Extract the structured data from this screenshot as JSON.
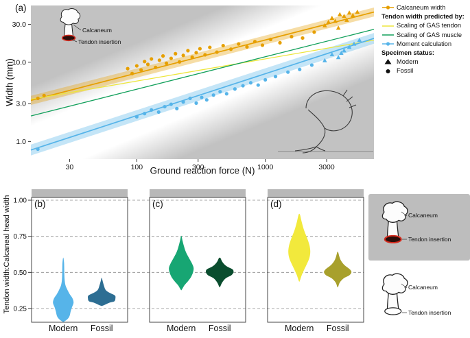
{
  "figure": {
    "panels": {
      "a": "(a)",
      "b": "(b)",
      "c": "(c)",
      "d": "(d)"
    }
  },
  "colors": {
    "plot_bg": "#C2C2C2",
    "diagonal_band": "#FFFFFF",
    "facet_strip": "#B8B8B8",
    "illustration_box": "#BDBDBD",
    "insertion_red": "#D42B1E",
    "orange": "#E69F00",
    "yellow": "#EDE63C",
    "green": "#12A05B",
    "blue": "#56B4E9",
    "marker_black": "#111111"
  },
  "anatomy": {
    "calcaneum_label": "Calcaneum",
    "tendon_insertion_label": "Tendon insertion"
  },
  "legend": {
    "items": [
      {
        "label": "Calcaneum width",
        "type": "line-dot",
        "color": "#E69F00"
      },
      {
        "label": "Tendon width predicted by:",
        "type": "header"
      },
      {
        "label": "Scaling of GAS tendon",
        "type": "line",
        "color": "#EDE63C"
      },
      {
        "label": "Scaling of GAS muscle",
        "type": "line",
        "color": "#12A05B"
      },
      {
        "label": "Moment calculation",
        "type": "line-dot",
        "color": "#56B4E9"
      },
      {
        "label": "Specimen status:",
        "type": "header"
      },
      {
        "label": "Modern",
        "type": "triangle",
        "color": "#111111"
      },
      {
        "label": "Fossil",
        "type": "circle",
        "color": "#111111"
      }
    ]
  },
  "chart_data": [
    {
      "type": "scatter",
      "xlabel": "Ground reaction force (N)",
      "ylabel": "Width (mm)",
      "xscale": "log",
      "yscale": "log",
      "xlim": [
        15,
        7000
      ],
      "ylim": [
        0.6,
        52
      ],
      "xticks": [
        {
          "v": 30,
          "label": "30"
        },
        {
          "v": 100,
          "label": "100"
        },
        {
          "v": 300,
          "label": "300"
        },
        {
          "v": 1000,
          "label": "1000"
        },
        {
          "v": 3000,
          "label": "3000"
        }
      ],
      "yticks": [
        {
          "v": 1,
          "label": "1.0"
        },
        {
          "v": 3,
          "label": "3.0"
        },
        {
          "v": 10,
          "label": "10.0"
        },
        {
          "v": 30,
          "label": "30.0"
        }
      ],
      "lines": [
        {
          "name": "Calcaneum width fit",
          "color": "#E69F00",
          "x": [
            15,
            7000
          ],
          "y": [
            3.3,
            43
          ],
          "band": 0.14,
          "width": 1.7
        },
        {
          "name": "Scaling of GAS tendon",
          "color": "#EDE63C",
          "x": [
            15,
            7000
          ],
          "y": [
            3.4,
            19
          ],
          "band": 0,
          "width": 1.3
        },
        {
          "name": "Scaling of GAS muscle",
          "color": "#12A05B",
          "x": [
            15,
            7000
          ],
          "y": [
            2.1,
            26
          ],
          "band": 0,
          "width": 1.3
        },
        {
          "name": "Moment calculation fit",
          "color": "#56B4E9",
          "x": [
            15,
            7000
          ],
          "y": [
            0.78,
            20
          ],
          "band": 0.17,
          "width": 1.7
        }
      ],
      "series": [
        {
          "name": "Calcaneum width - Fossil",
          "marker": "circle",
          "color": "#E69F00",
          "points": [
            [
              17,
              3.5
            ],
            [
              19,
              3.8
            ],
            [
              85,
              8.3
            ],
            [
              92,
              7.2
            ],
            [
              100,
              9.0
            ],
            [
              108,
              8.0
            ],
            [
              115,
              10.2
            ],
            [
              122,
              9.4
            ],
            [
              130,
              11.0
            ],
            [
              140,
              8.6
            ],
            [
              150,
              10.6
            ],
            [
              160,
              12.0
            ],
            [
              170,
              9.7
            ],
            [
              185,
              11.2
            ],
            [
              200,
              12.8
            ],
            [
              215,
              10.1
            ],
            [
              230,
              12.2
            ],
            [
              250,
              14.0
            ],
            [
              270,
              11.6
            ],
            [
              290,
              13.2
            ],
            [
              310,
              14.8
            ],
            [
              340,
              12.4
            ],
            [
              370,
              15.4
            ],
            [
              420,
              13.4
            ],
            [
              470,
              16.2
            ],
            [
              540,
              14.6
            ],
            [
              620,
              17.0
            ],
            [
              720,
              15.6
            ],
            [
              830,
              18.2
            ],
            [
              950,
              16.4
            ],
            [
              1100,
              19.4
            ],
            [
              1300,
              17.6
            ],
            [
              1600,
              21.0
            ],
            [
              1950,
              20.2
            ],
            [
              2400,
              24.0
            ]
          ]
        },
        {
          "name": "Calcaneum width - Modern",
          "marker": "triangle",
          "color": "#E69F00",
          "points": [
            [
              2900,
              29
            ],
            [
              3100,
              32
            ],
            [
              3300,
              36
            ],
            [
              3500,
              33
            ],
            [
              3700,
              27
            ],
            [
              3800,
              40
            ],
            [
              4100,
              38
            ],
            [
              4300,
              34
            ],
            [
              4500,
              42
            ],
            [
              4800,
              39
            ],
            [
              5200,
              43
            ]
          ]
        },
        {
          "name": "Moment calculation - Fossil",
          "marker": "circle",
          "color": "#56B4E9",
          "points": [
            [
              17,
              0.8
            ],
            [
              100,
              2.05
            ],
            [
              115,
              2.25
            ],
            [
              130,
              2.5
            ],
            [
              148,
              2.35
            ],
            [
              165,
              2.75
            ],
            [
              185,
              2.95
            ],
            [
              205,
              2.6
            ],
            [
              230,
              3.15
            ],
            [
              260,
              3.5
            ],
            [
              290,
              3.05
            ],
            [
              320,
              3.6
            ],
            [
              350,
              3.35
            ],
            [
              395,
              3.85
            ],
            [
              445,
              4.25
            ],
            [
              500,
              4.0
            ],
            [
              580,
              4.6
            ],
            [
              670,
              5.05
            ],
            [
              770,
              5.5
            ],
            [
              880,
              5.15
            ],
            [
              1000,
              6.0
            ],
            [
              1200,
              6.6
            ],
            [
              1500,
              7.5
            ],
            [
              1850,
              8.1
            ],
            [
              2300,
              9.2
            ]
          ]
        },
        {
          "name": "Moment calculation - Modern",
          "marker": "triangle",
          "color": "#56B4E9",
          "points": [
            [
              2900,
              10.5
            ],
            [
              3300,
              12.5
            ],
            [
              3700,
              11.5
            ],
            [
              3900,
              13.0
            ],
            [
              4100,
              14.0
            ],
            [
              4500,
              15.5
            ],
            [
              4900,
              17.0
            ],
            [
              5400,
              19.0
            ]
          ]
        }
      ]
    },
    {
      "type": "violin",
      "panel": "b",
      "ylabel": "Tendon width:Calcaneal head width",
      "ylim": [
        0.12,
        1.05
      ],
      "yticks": [
        {
          "v": 0.25,
          "label": "0.25"
        },
        {
          "v": 0.5,
          "label": "0.50"
        },
        {
          "v": 0.75,
          "label": "0.75"
        },
        {
          "v": 1.0,
          "label": "1.00"
        }
      ],
      "categories": [
        "Modern",
        "Fossil"
      ],
      "violins": [
        {
          "category": "Modern",
          "color": "#56B4E9",
          "maxw": 15,
          "profile": [
            [
              0.16,
              0.08
            ],
            [
              0.18,
              0.45
            ],
            [
              0.2,
              0.62
            ],
            [
              0.23,
              0.72
            ],
            [
              0.26,
              0.85
            ],
            [
              0.29,
              1.0
            ],
            [
              0.32,
              0.9
            ],
            [
              0.35,
              0.62
            ],
            [
              0.38,
              0.4
            ],
            [
              0.41,
              0.22
            ],
            [
              0.45,
              0.13
            ],
            [
              0.5,
              0.1
            ],
            [
              0.55,
              0.09
            ],
            [
              0.58,
              0.06
            ],
            [
              0.6,
              0.02
            ]
          ]
        },
        {
          "category": "Fossil",
          "color": "#2D6E93",
          "maxw": 20,
          "profile": [
            [
              0.27,
              0.08
            ],
            [
              0.29,
              0.55
            ],
            [
              0.3,
              0.92
            ],
            [
              0.32,
              1.0
            ],
            [
              0.34,
              0.96
            ],
            [
              0.36,
              0.55
            ],
            [
              0.38,
              0.28
            ],
            [
              0.41,
              0.16
            ],
            [
              0.44,
              0.07
            ],
            [
              0.46,
              0.02
            ]
          ]
        }
      ]
    },
    {
      "type": "violin",
      "panel": "c",
      "yticks": [
        {
          "v": 0.25,
          "label": "0.25"
        },
        {
          "v": 0.5,
          "label": "0.50"
        },
        {
          "v": 0.75,
          "label": "0.75"
        },
        {
          "v": 1.0,
          "label": "1.00"
        }
      ],
      "categories": [
        "Modern",
        "Fossil"
      ],
      "violins": [
        {
          "category": "Modern",
          "color": "#17A673",
          "maxw": 18,
          "profile": [
            [
              0.38,
              0.04
            ],
            [
              0.41,
              0.25
            ],
            [
              0.44,
              0.55
            ],
            [
              0.47,
              0.8
            ],
            [
              0.5,
              0.95
            ],
            [
              0.53,
              1.0
            ],
            [
              0.56,
              0.88
            ],
            [
              0.6,
              0.62
            ],
            [
              0.64,
              0.38
            ],
            [
              0.68,
              0.22
            ],
            [
              0.72,
              0.1
            ],
            [
              0.75,
              0.03
            ]
          ]
        },
        {
          "category": "Fossil",
          "color": "#0A4D2E",
          "maxw": 20,
          "profile": [
            [
              0.4,
              0.03
            ],
            [
              0.43,
              0.18
            ],
            [
              0.46,
              0.45
            ],
            [
              0.48,
              0.85
            ],
            [
              0.5,
              1.0
            ],
            [
              0.52,
              0.95
            ],
            [
              0.54,
              0.55
            ],
            [
              0.56,
              0.3
            ],
            [
              0.58,
              0.15
            ],
            [
              0.6,
              0.05
            ]
          ]
        }
      ]
    },
    {
      "type": "violin",
      "panel": "d",
      "yticks": [
        {
          "v": 0.25,
          "label": "0.25"
        },
        {
          "v": 0.5,
          "label": "0.50"
        },
        {
          "v": 0.75,
          "label": "0.75"
        },
        {
          "v": 1.0,
          "label": "1.00"
        }
      ],
      "categories": [
        "Modern",
        "Fossil"
      ],
      "violins": [
        {
          "category": "Modern",
          "color": "#F2E93C",
          "maxw": 16,
          "profile": [
            [
              0.44,
              0.04
            ],
            [
              0.48,
              0.22
            ],
            [
              0.52,
              0.45
            ],
            [
              0.56,
              0.7
            ],
            [
              0.6,
              0.92
            ],
            [
              0.64,
              1.0
            ],
            [
              0.68,
              0.95
            ],
            [
              0.72,
              0.8
            ],
            [
              0.76,
              0.6
            ],
            [
              0.8,
              0.4
            ],
            [
              0.85,
              0.22
            ],
            [
              0.9,
              0.06
            ]
          ]
        },
        {
          "category": "Fossil",
          "color": "#A8A02C",
          "maxw": 20,
          "profile": [
            [
              0.4,
              0.03
            ],
            [
              0.43,
              0.15
            ],
            [
              0.46,
              0.45
            ],
            [
              0.48,
              0.85
            ],
            [
              0.5,
              1.0
            ],
            [
              0.52,
              0.9
            ],
            [
              0.55,
              0.5
            ],
            [
              0.58,
              0.25
            ],
            [
              0.61,
              0.12
            ],
            [
              0.64,
              0.03
            ]
          ]
        }
      ]
    }
  ]
}
